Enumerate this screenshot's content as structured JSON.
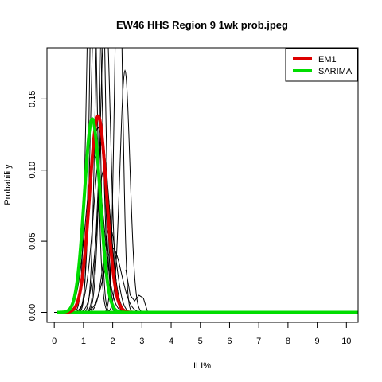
{
  "chart_data": {
    "type": "line",
    "title": "EW46 HHS Region 9 1wk prob.jpeg",
    "xlabel": "ILI%",
    "ylabel": "Probability",
    "xlim": [
      -0.25,
      10.4
    ],
    "ylim": [
      -0.007,
      0.186
    ],
    "x_ticks": [
      0,
      1,
      2,
      3,
      4,
      5,
      6,
      7,
      8,
      9,
      10
    ],
    "x_tick_labels": [
      "0",
      "1",
      "2",
      "3",
      "4",
      "5",
      "6",
      "7",
      "8",
      "9",
      "10"
    ],
    "y_ticks": [
      0,
      0.05,
      0.1,
      0.15
    ],
    "y_tick_labels": [
      "0.00",
      "0.05",
      "0.10",
      "0.15"
    ],
    "legend": {
      "position": "top-right",
      "entries": [
        {
          "label": "EM1",
          "color": "#dd0000"
        },
        {
          "label": "SARIMA",
          "color": "#00dd00"
        }
      ]
    },
    "highlight_series": [
      {
        "name": "EM1",
        "color": "#dd0000",
        "mean": 1.5,
        "sd": 0.29,
        "peak": 0.138
      },
      {
        "name": "SARIMA",
        "color": "#00dd00",
        "mean": 1.3,
        "sd": 0.27,
        "peak": 0.136
      }
    ],
    "background_series": [
      {
        "mean": 1.28,
        "sd": 0.16,
        "peak": 0.3,
        "color": "#000000"
      },
      {
        "mean": 1.38,
        "sd": 0.14,
        "peak": 0.35,
        "color": "#000000"
      },
      {
        "mean": 1.45,
        "sd": 0.18,
        "peak": 0.26,
        "color": "#000000"
      },
      {
        "mean": 1.58,
        "sd": 0.15,
        "peak": 0.3,
        "color": "#000000"
      },
      {
        "mean": 1.75,
        "sd": 0.17,
        "peak": 0.22,
        "color": "#000000"
      },
      {
        "mean": 2.2,
        "sd": 0.13,
        "peak": 0.28,
        "color": "#000000"
      },
      {
        "mean": 2.42,
        "sd": 0.17,
        "peak": 0.17,
        "color": "#000000"
      },
      {
        "mean": 1.5,
        "sd": 0.28,
        "peak": 0.13,
        "color": "#000000"
      },
      {
        "mean": 1.62,
        "sd": 0.27,
        "peak": 0.12,
        "color": "#000000"
      },
      {
        "mean": 1.38,
        "sd": 0.3,
        "peak": 0.11,
        "color": "#000000"
      },
      {
        "mean": 1.7,
        "sd": 0.24,
        "peak": 0.1,
        "color": "#000000"
      },
      {
        "mean": 1.9,
        "sd": 0.22,
        "peak": 0.06,
        "color": "#000000"
      },
      {
        "mean": 2.0,
        "sd": 0.3,
        "peak": 0.045,
        "color": "#000000"
      },
      {
        "mean": 1.62,
        "sd": 0.15,
        "peak": 0.12,
        "color": "#000000"
      }
    ],
    "background_tail": {
      "x": [
        2.45,
        2.6,
        2.75,
        2.9,
        3.05,
        3.2
      ],
      "y": [
        0.03,
        0.012,
        0.008,
        0.012,
        0.01,
        0.0
      ]
    },
    "grid": false
  }
}
